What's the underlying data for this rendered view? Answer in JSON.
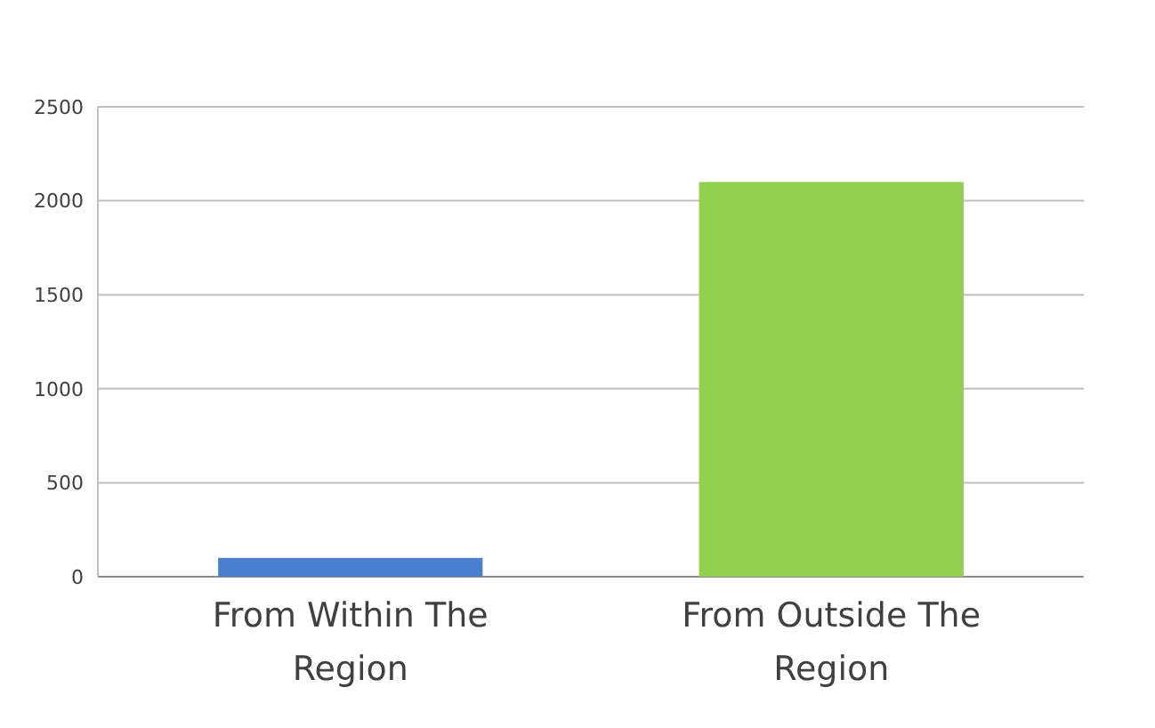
{
  "chart_data": {
    "type": "bar",
    "categories": [
      "From Within The Region",
      "From Outside The Region"
    ],
    "values": [
      100,
      2100
    ],
    "colors": [
      "#4a7fd0",
      "#92d050"
    ],
    "ylim": [
      0,
      2500
    ],
    "yticks": [
      0,
      500,
      1000,
      1500,
      2000,
      2500
    ],
    "grid": "y"
  }
}
